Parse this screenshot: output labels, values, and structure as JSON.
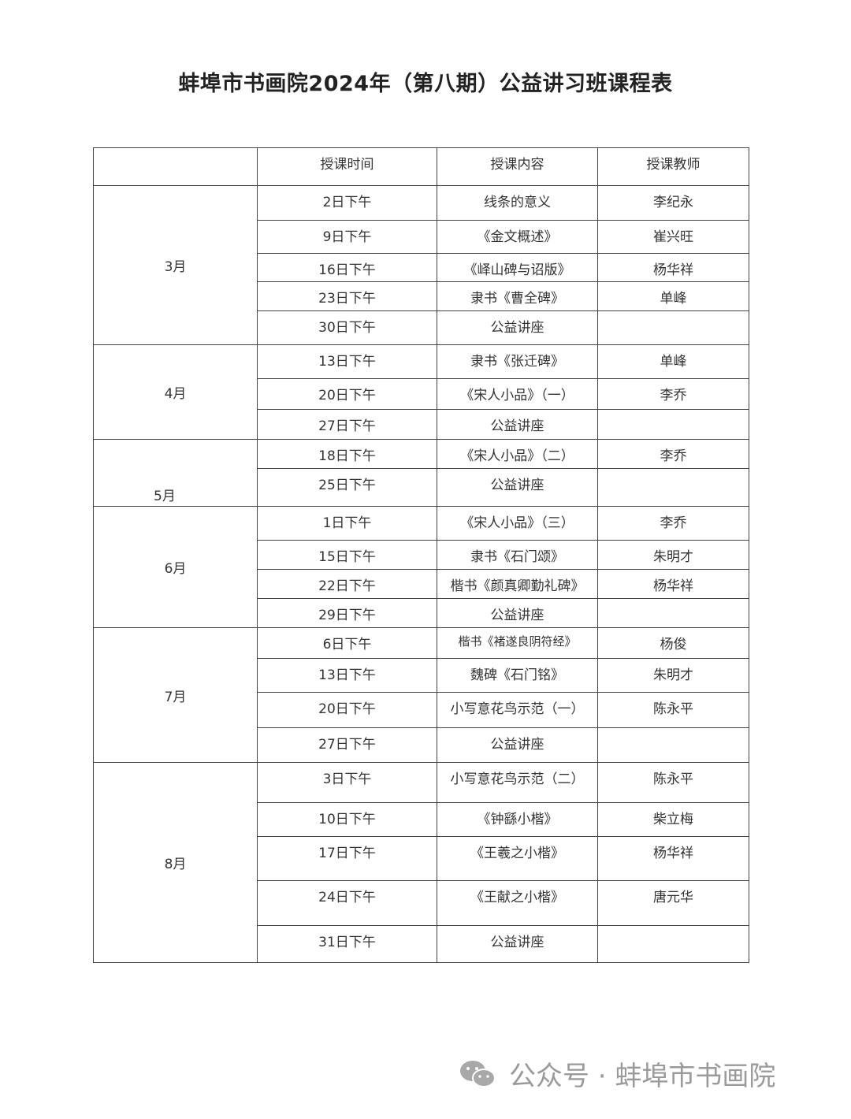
{
  "title": "蚌埠市书画院2024年（第八期）公益讲习班课程表",
  "headers": [
    "",
    "授课时间",
    "授课内容",
    "授课教师"
  ],
  "months": [
    {
      "month": "3月",
      "rows": [
        [
          "2日下午",
          "线条的意义",
          "李纪永"
        ],
        [
          "9日下午",
          "《金文概述》",
          "崔兴旺"
        ],
        [
          "16日下午",
          "《峄山碑与诏版》",
          "杨华祥"
        ],
        [
          "23日下午",
          "隶书《曹全碑》",
          "单峰"
        ],
        [
          "30日下午",
          "公益讲座",
          ""
        ]
      ]
    },
    {
      "month": "4月",
      "rows": [
        [
          "13日下午",
          "隶书《张迁碑》",
          "单峰"
        ],
        [
          "20日下午",
          "《宋人小品》（一）",
          "李乔"
        ],
        [
          "27日下午",
          "公益讲座",
          ""
        ]
      ]
    },
    {
      "month": "5月",
      "rows": [
        [
          "18日下午",
          "《宋人小品》（二）",
          "李乔"
        ],
        [
          "25日下午",
          "公益讲座",
          ""
        ]
      ]
    },
    {
      "month": "6月",
      "rows": [
        [
          "1日下午",
          "《宋人小品》（三）",
          "李乔"
        ],
        [
          "15日下午",
          "隶书《石门颂》",
          "朱明才"
        ],
        [
          "22日下午",
          "楷书《颜真卿勤礼碑》",
          "杨华祥"
        ],
        [
          "29日下午",
          "公益讲座",
          ""
        ]
      ]
    },
    {
      "month": "7月",
      "rows": [
        [
          "6日下午",
          "楷书《褚遂良阴符经》",
          "杨俊"
        ],
        [
          "13日下午",
          "魏碑《石门铭》",
          "朱明才"
        ],
        [
          "20日下午",
          "小写意花鸟示范（一）",
          "陈永平"
        ],
        [
          "27日下午",
          "公益讲座",
          ""
        ]
      ]
    },
    {
      "month": "8月",
      "rows": [
        [
          "3日下午",
          "小写意花鸟示范（二）",
          "陈永平"
        ],
        [
          "10日下午",
          "《钟繇小楷》",
          "柴立梅"
        ],
        [
          "17日下午",
          "《王羲之小楷》",
          "杨华祥"
        ],
        [
          "24日下午",
          "《王献之小楷》",
          "唐元华"
        ],
        [
          "31日下午",
          "公益讲座",
          ""
        ]
      ]
    }
  ],
  "watermark": {
    "icon": "wechat-icon",
    "text": "公众号 · 蚌埠市书画院"
  }
}
